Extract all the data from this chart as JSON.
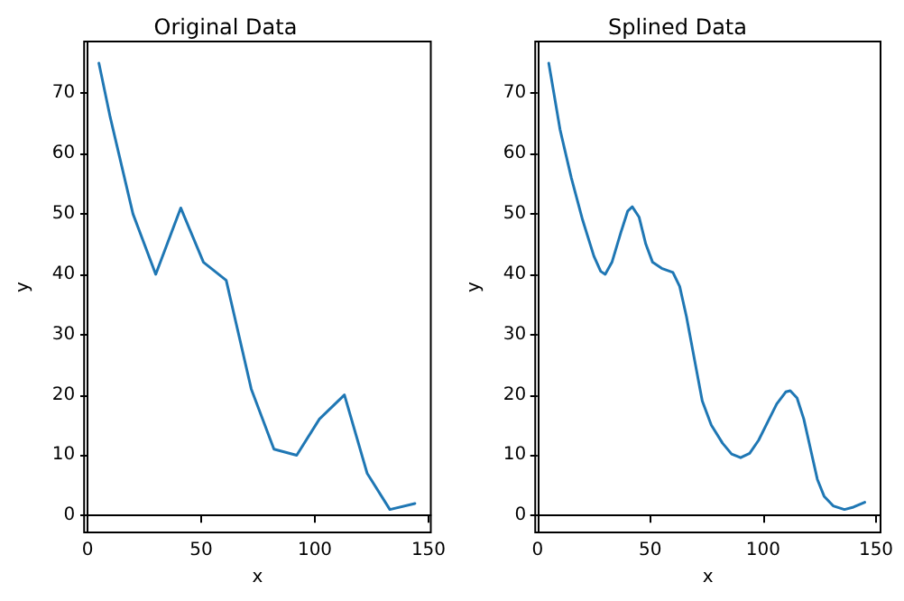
{
  "chart_data": [
    {
      "type": "line",
      "title": "Original Data",
      "xlabel": "x",
      "ylabel": "y",
      "color": "#1f77b4",
      "marker": "none",
      "x": [
        5,
        10,
        20,
        30,
        41,
        51,
        61,
        72,
        82,
        92,
        102,
        113,
        123,
        133,
        144
      ],
      "values": [
        75,
        66,
        50,
        40,
        51,
        42,
        39,
        21,
        11,
        10,
        16,
        20,
        7,
        1,
        2
      ],
      "xlim": [
        -1.5,
        151
      ],
      "ylim": [
        -2.8,
        78.6
      ],
      "xticks": [
        0,
        50,
        100,
        150
      ],
      "yticks": [
        0,
        10,
        20,
        30,
        40,
        50,
        60,
        70
      ]
    },
    {
      "type": "line",
      "title": "Splined Data",
      "xlabel": "x",
      "ylabel": "y",
      "color": "#1f77b4",
      "marker": "none",
      "x": [
        5,
        10,
        15,
        20,
        25,
        28,
        30,
        33,
        37,
        40,
        42,
        45,
        48,
        51,
        55,
        60,
        63,
        66,
        70,
        73,
        77,
        82,
        86,
        90,
        94,
        98,
        102,
        106,
        110,
        112,
        115,
        118,
        121,
        124,
        127,
        131,
        136,
        140,
        145
      ],
      "values": [
        75,
        64,
        56,
        49,
        43,
        40.5,
        40,
        42,
        47,
        50.5,
        51.2,
        49.5,
        45,
        42,
        41,
        40.3,
        38,
        33,
        25,
        19,
        15,
        12,
        10.2,
        9.6,
        10.3,
        12.5,
        15.5,
        18.5,
        20.5,
        20.7,
        19.5,
        16,
        11,
        6,
        3.2,
        1.6,
        1,
        1.4,
        2.2
      ],
      "xlim": [
        -1,
        152
      ],
      "ylim": [
        -2.8,
        78.6
      ],
      "xticks": [
        0,
        50,
        100,
        150
      ],
      "yticks": [
        0,
        10,
        20,
        30,
        40,
        50,
        60,
        70
      ]
    }
  ]
}
